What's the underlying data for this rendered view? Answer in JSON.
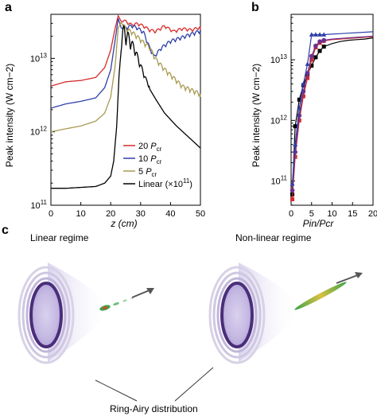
{
  "panel_labels": {
    "a": "a",
    "b": "b",
    "c": "c"
  },
  "chart_data": [
    {
      "panel": "a",
      "type": "line",
      "xlabel": "z (cm)",
      "ylabel": "Peak intensity (W cm−2)",
      "xlim": [
        0,
        50
      ],
      "ylim_log10": [
        11,
        13.6
      ],
      "y_scale": "log",
      "x_ticks": [
        "0",
        "10",
        "20",
        "30",
        "40",
        "50"
      ],
      "y_ticks": [
        "10^11",
        "10^12",
        "10^13"
      ],
      "legend": {
        "position": "lower-right",
        "entries": [
          "20 Pcr",
          "10 Pcr",
          "5 Pcr",
          "Linear (×10^11)"
        ]
      },
      "series": [
        {
          "name": "20 Pcr",
          "color": "#d62a2a",
          "x": [
            0,
            5,
            10,
            15,
            18,
            20,
            21.5,
            22.5,
            23.5,
            25,
            27,
            29,
            31,
            33,
            35,
            38,
            41,
            44,
            47,
            50
          ],
          "y": [
            4200000000000.0,
            4800000000000.0,
            5000000000000.0,
            5500000000000.0,
            7500000000000.0,
            13000000000000.0,
            26000000000000.0,
            38000000000000.0,
            32000000000000.0,
            30000000000000.0,
            27000000000000.0,
            28000000000000.0,
            26000000000000.0,
            23000000000000.0,
            22000000000000.0,
            26000000000000.0,
            22000000000000.0,
            24000000000000.0,
            23000000000000.0,
            25000000000000.0
          ]
        },
        {
          "name": "10 Pcr",
          "color": "#2f3fa8",
          "x": [
            0,
            5,
            10,
            15,
            18,
            20,
            21.5,
            22.5,
            23.5,
            25,
            27,
            29,
            31,
            33,
            34.5,
            37,
            40,
            44,
            47,
            50
          ],
          "y": [
            2100000000000.0,
            2400000000000.0,
            2600000000000.0,
            2900000000000.0,
            4000000000000.0,
            7000000000000.0,
            18000000000000.0,
            35000000000000.0,
            26000000000000.0,
            24000000000000.0,
            26000000000000.0,
            24000000000000.0,
            21000000000000.0,
            13000000000000.0,
            9800000000000.0,
            13000000000000.0,
            16000000000000.0,
            18000000000000.0,
            20000000000000.0,
            22000000000000.0
          ]
        },
        {
          "name": "5 Pcr",
          "color": "#a89a50",
          "x": [
            0,
            5,
            10,
            15,
            18,
            20,
            21.5,
            22.5,
            23.5,
            25,
            27,
            29,
            31,
            33,
            35,
            38,
            41,
            44,
            47,
            50
          ],
          "y": [
            1000000000000.0,
            1100000000000.0,
            1200000000000.0,
            1400000000000.0,
            1800000000000.0,
            3000000000000.0,
            8000000000000.0,
            26000000000000.0,
            31000000000000.0,
            23000000000000.0,
            21000000000000.0,
            18000000000000.0,
            15000000000000.0,
            13000000000000.0,
            9000000000000.0,
            6500000000000.0,
            5000000000000.0,
            3800000000000.0,
            3400000000000.0,
            3000000000000.0
          ]
        },
        {
          "name": "Linear (×10^11)",
          "color": "#000000",
          "x": [
            0,
            5,
            10,
            15,
            18,
            20,
            21,
            22,
            22.8,
            23.5,
            24.5,
            26,
            28,
            30,
            32,
            35,
            38,
            42,
            46,
            50
          ],
          "y": [
            170000000000.0,
            170000000000.0,
            175000000000.0,
            180000000000.0,
            200000000000.0,
            250000000000.0,
            400000000000.0,
            1200000000000.0,
            6000000000000.0,
            13000000000000.0,
            15000000000000.0,
            14000000000000.0,
            11000000000000.0,
            7000000000000.0,
            4500000000000.0,
            2800000000000.0,
            1800000000000.0,
            1200000000000.0,
            850000000000.0,
            600000000000.0
          ]
        }
      ]
    },
    {
      "panel": "b",
      "type": "line",
      "xlabel": "Pin/Pcr",
      "ylabel": "Peak intensity (W cm−2)",
      "xlim": [
        0,
        20
      ],
      "ylim_log10": [
        10.6,
        13.75
      ],
      "y_scale": "log",
      "x_ticks": [
        "0",
        "5",
        "10",
        "15",
        "20"
      ],
      "y_ticks": [
        "10^11",
        "10^12",
        "10^13"
      ],
      "series": [
        {
          "color": "#000000",
          "marker": "square",
          "x": [
            0.3,
            1,
            2,
            3,
            4,
            5,
            6,
            7,
            8,
            10,
            12,
            14,
            16,
            18,
            20
          ],
          "y": [
            60000000000.0,
            800000000000.0,
            2200000000000.0,
            3800000000000.0,
            5800000000000.0,
            8000000000000.0,
            11000000000000.0,
            14000000000000.0,
            16500000000000.0,
            18500000000000.0,
            20000000000000.0,
            21000000000000.0,
            21500000000000.0,
            22000000000000.0,
            23000000000000.0
          ]
        },
        {
          "color": "#d62a2a",
          "marker": "square",
          "x": [
            0.3,
            1,
            2,
            3,
            4,
            5,
            6,
            7,
            8,
            10,
            12,
            14,
            16,
            18,
            20
          ],
          "y": [
            50000000000.0,
            250000000000.0,
            1000000000000.0,
            2500000000000.0,
            5000000000000.0,
            10000000000000.0,
            16000000000000.0,
            19000000000000.0,
            20500000000000.0,
            21500000000000.0,
            22000000000000.0,
            22500000000000.0,
            23000000000000.0,
            23500000000000.0,
            24000000000000.0
          ]
        },
        {
          "color": "#6b2f8f",
          "marker": "circle",
          "x": [
            0.3,
            1,
            2,
            3,
            4,
            5,
            6,
            7,
            8,
            10,
            12,
            14,
            16,
            18,
            20
          ],
          "y": [
            70000000000.0,
            300000000000.0,
            1200000000000.0,
            3000000000000.0,
            6000000000000.0,
            11500000000000.0,
            17000000000000.0,
            20000000000000.0,
            21000000000000.0,
            22000000000000.0,
            22500000000000.0,
            23000000000000.0,
            23500000000000.0,
            24000000000000.0,
            24500000000000.0
          ]
        },
        {
          "color": "#2f3fa8",
          "marker": "triangle",
          "x": [
            0.3,
            1,
            2,
            3,
            4,
            5,
            6,
            7,
            8,
            10,
            12,
            14,
            16,
            18,
            20
          ],
          "y": [
            90000000000.0,
            400000000000.0,
            1600000000000.0,
            4000000000000.0,
            8500000000000.0,
            26000000000000.0,
            26000000000000.0,
            26000000000000.0,
            26000000000000.0,
            26500000000000.0,
            27000000000000.0,
            27500000000000.0,
            28000000000000.0,
            28500000000000.0,
            29000000000000.0
          ]
        }
      ]
    }
  ],
  "panel_c": {
    "linear_title": "Linear regime",
    "nonlinear_title": "Non-linear regime",
    "caption": "Ring-Airy distribution"
  }
}
